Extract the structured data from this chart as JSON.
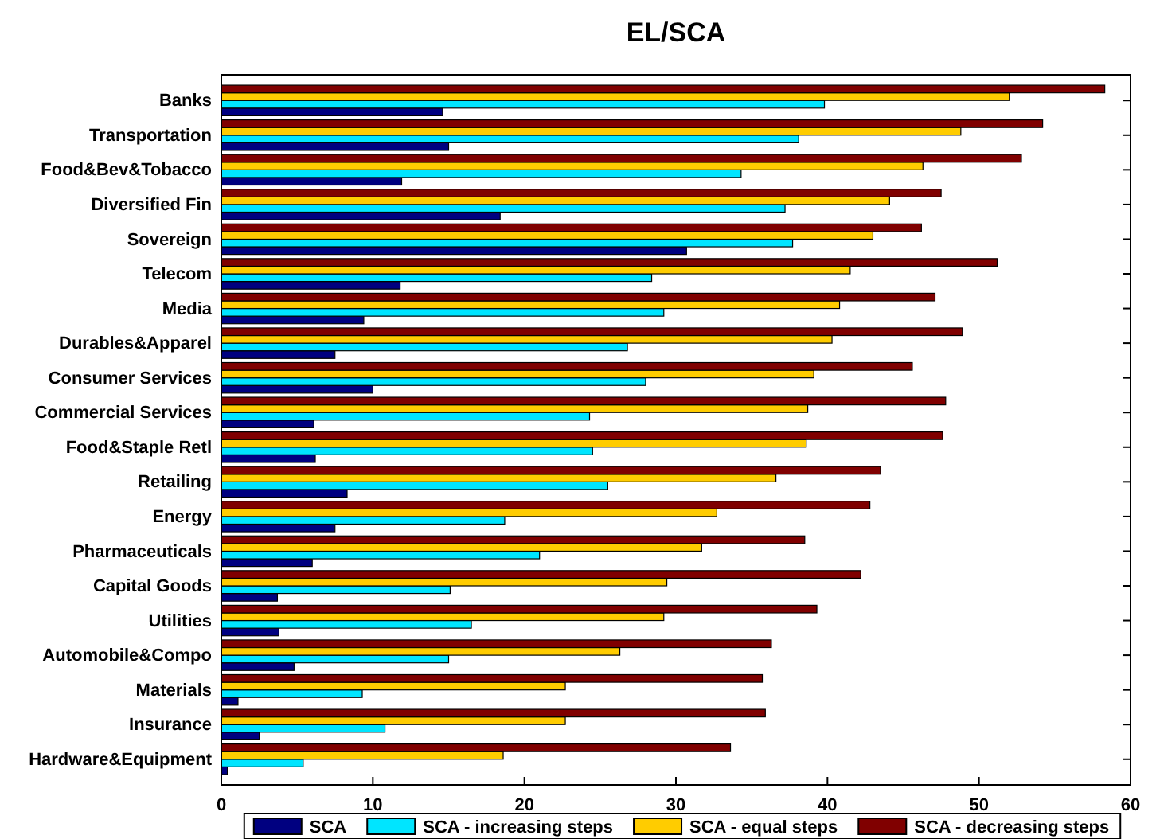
{
  "chart_data": {
    "type": "bar",
    "orientation": "horizontal",
    "title": "EL/SCA",
    "categories": [
      "Banks",
      "Transportation",
      "Food&Bev&Tobacco",
      "Diversified Fin",
      "Sovereign",
      "Telecom",
      "Media",
      "Durables&Apparel",
      "Consumer Services",
      "Commercial Services",
      "Food&Staple Retl",
      "Retailing",
      "Energy",
      "Pharmaceuticals",
      "Capital Goods",
      "Utilities",
      "Automobile&Compo",
      "Materials",
      "Insurance",
      "Hardware&Equipment"
    ],
    "series": [
      {
        "name": "SCA",
        "color": "#000080",
        "values": [
          14.6,
          15.0,
          11.9,
          18.4,
          30.7,
          11.8,
          9.4,
          7.5,
          10.0,
          6.1,
          6.2,
          8.3,
          7.5,
          6.0,
          3.7,
          3.8,
          4.8,
          1.1,
          2.5,
          0.4
        ]
      },
      {
        "name": "SCA - increasing steps",
        "color": "#00e5ff",
        "values": [
          39.8,
          38.1,
          34.3,
          37.2,
          37.7,
          28.4,
          29.2,
          26.8,
          28.0,
          24.3,
          24.5,
          25.5,
          18.7,
          21.0,
          15.1,
          16.5,
          15.0,
          9.3,
          10.8,
          5.4
        ]
      },
      {
        "name": "SCA - equal steps",
        "color": "#ffcc00",
        "values": [
          52.0,
          48.8,
          46.3,
          44.1,
          43.0,
          41.5,
          40.8,
          40.3,
          39.1,
          38.7,
          38.6,
          36.6,
          32.7,
          31.7,
          29.4,
          29.2,
          26.3,
          22.7,
          22.7,
          18.6
        ]
      },
      {
        "name": "SCA - decreasing steps",
        "color": "#800000",
        "values": [
          58.3,
          54.2,
          52.8,
          47.5,
          46.2,
          51.2,
          47.1,
          48.9,
          45.6,
          47.8,
          47.6,
          43.5,
          42.8,
          38.5,
          42.2,
          39.3,
          36.3,
          35.7,
          35.9,
          33.6
        ]
      }
    ],
    "xlim": [
      0,
      60
    ],
    "xticks": [
      0,
      10,
      20,
      30,
      40,
      50,
      60
    ],
    "grid": false,
    "legend": "bottom"
  }
}
